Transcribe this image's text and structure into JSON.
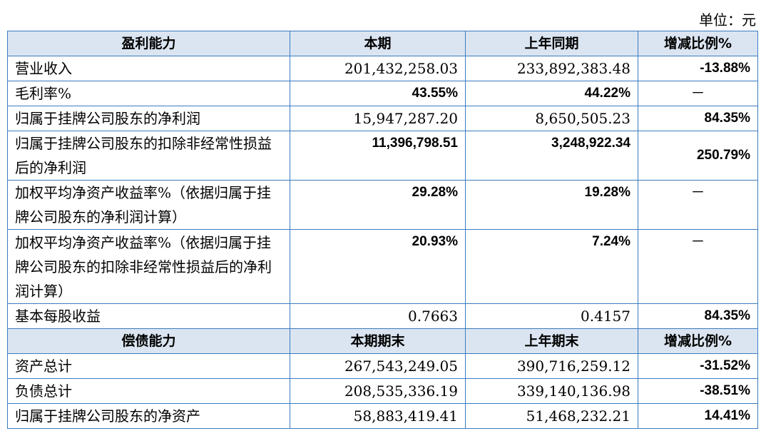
{
  "unit": "单位：元",
  "profit": {
    "headers": [
      "盈利能力",
      "本期",
      "上年同期",
      "增减比例%"
    ],
    "rows": [
      [
        "营业收入",
        "201,432,258.03",
        "233,892,383.48",
        "-13.88%"
      ],
      [
        "毛利率%",
        "43.55%",
        "44.22%",
        "－"
      ],
      [
        "归属于挂牌公司股东的净利润",
        "15,947,287.20",
        "8,650,505.23",
        "84.35%"
      ],
      [
        "归属于挂牌公司股东的扣除非经常性损益后的净利润",
        "11,396,798.51",
        "3,248,922.34",
        "250.79%"
      ],
      [
        "加权平均净资产收益率%（依据归属于挂牌公司股东的净利润计算）",
        "29.28%",
        "19.28%",
        "－"
      ],
      [
        "加权平均净资产收益率%（依据归属于挂牌公司股东的扣除非经常性损益后的净利润计算）",
        "20.93%",
        "7.24%",
        "－"
      ],
      [
        "基本每股收益",
        "0.7663",
        "0.4157",
        "84.35%"
      ]
    ]
  },
  "solvency": {
    "headers": [
      "偿债能力",
      "本期期末",
      "上年期末",
      "增减比例%"
    ],
    "rows": [
      [
        "资产总计",
        "267,543,249.05",
        "390,716,259.12",
        "-31.52%"
      ],
      [
        "负债总计",
        "208,535,336.19",
        "339,140,136.98",
        "-38.51%"
      ],
      [
        "归属于挂牌公司股东的净资产",
        "58,883,419.41",
        "51,468,232.21",
        "14.41%"
      ]
    ]
  }
}
